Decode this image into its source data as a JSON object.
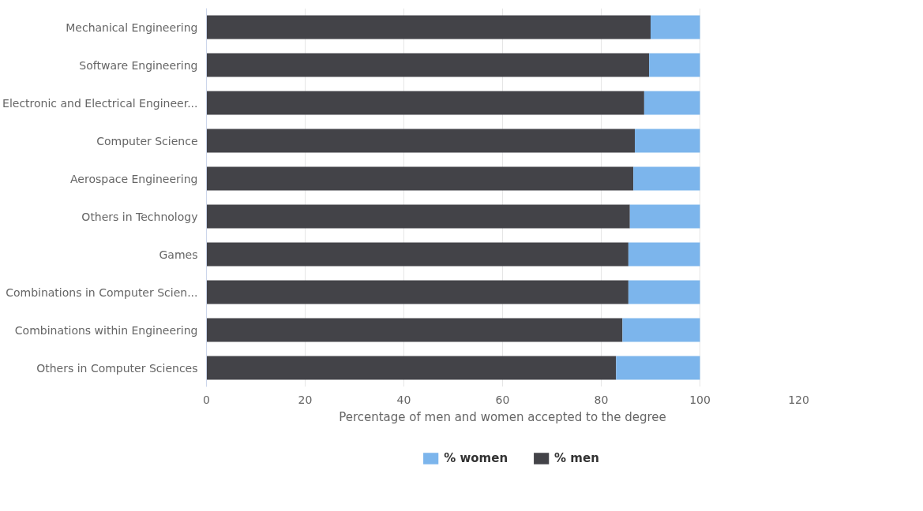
{
  "chart_data": {
    "type": "bar",
    "orientation": "horizontal",
    "stacked": true,
    "categories": [
      "Mechanical Engineering",
      "Software Engineering",
      "Electronic and Electrical Engineer...",
      "Computer Science",
      "Aerospace Engineering",
      "Others in Technology",
      "Games",
      "Combinations in Computer Scien...",
      "Combinations within Engineering",
      "Others in Computer Sciences"
    ],
    "series": [
      {
        "name": "% men",
        "color": "#434348",
        "values": [
          90.0,
          89.7,
          88.7,
          86.8,
          86.5,
          85.8,
          85.5,
          85.5,
          84.3,
          83.0
        ]
      },
      {
        "name": "% women",
        "color": "#7cb5ec",
        "values": [
          10.0,
          10.3,
          11.3,
          13.2,
          13.5,
          14.2,
          14.5,
          14.5,
          15.7,
          17.0
        ]
      }
    ],
    "xlabel": "Percentage of men and women accepted to the degree",
    "xlim": [
      0,
      120
    ],
    "xticks": [
      0,
      20,
      40,
      60,
      80,
      100,
      120
    ],
    "grid": "x",
    "legend": "bottom"
  }
}
